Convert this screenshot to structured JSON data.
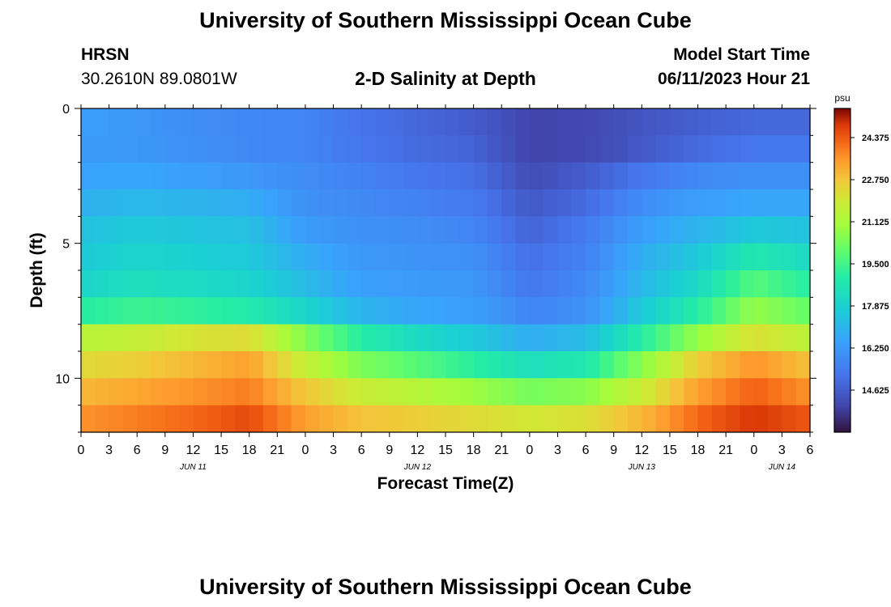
{
  "header": {
    "title": "University of Southern Mississippi Ocean Cube",
    "station": "HRSN",
    "coords": "30.2610N  89.0801W",
    "chart_title": "2-D Salinity at Depth",
    "start_label": "Model Start Time",
    "start_value": "06/11/2023 Hour 21"
  },
  "footer": {
    "title": "University of Southern Mississippi Ocean Cube"
  },
  "chart_data": {
    "type": "heatmap",
    "title": "2-D Salinity at Depth",
    "xlabel": "Forecast Time(Z)",
    "ylabel": "Depth (ft)",
    "ylim": [
      0,
      12
    ],
    "yticks": [
      0,
      5,
      10
    ],
    "xlim": [
      0,
      78
    ],
    "xtick_labels": [
      "0",
      "3",
      "6",
      "9",
      "12",
      "15",
      "18",
      "21",
      "0",
      "3",
      "6",
      "9",
      "12",
      "15",
      "18",
      "21",
      "0",
      "3",
      "6",
      "9",
      "12",
      "15",
      "18",
      "21",
      "0",
      "3",
      "6"
    ],
    "day_labels": [
      {
        "label": "JUN 11",
        "hour": 12
      },
      {
        "label": "JUN 12",
        "hour": 36
      },
      {
        "label": "JUN 13",
        "hour": 60
      },
      {
        "label": "JUN 14",
        "hour": 75
      }
    ],
    "colorbar": {
      "unit": "psu",
      "min": 13.0,
      "max": 25.5,
      "ticks": [
        "24.375",
        "22.750",
        "21.125",
        "19.500",
        "17.875",
        "16.250",
        "14.625"
      ]
    },
    "depth_layers_ft": [
      0.5,
      1.5,
      2.5,
      3.5,
      4.5,
      5.5,
      6.5,
      7.5,
      8.5,
      9.5,
      10.5,
      11.5
    ],
    "time_hours": [
      0,
      6,
      12,
      18,
      24,
      30,
      36,
      42,
      48,
      54,
      60,
      66,
      72,
      78
    ],
    "salinity_psu": [
      [
        16.4,
        16.2,
        15.9,
        15.8,
        15.7,
        15.2,
        14.9,
        14.6,
        14.0,
        14.1,
        14.4,
        14.7,
        14.9,
        14.9
      ],
      [
        16.3,
        16.2,
        16.0,
        15.8,
        15.7,
        15.3,
        15.0,
        14.8,
        14.0,
        14.1,
        14.5,
        15.0,
        15.3,
        15.3
      ],
      [
        16.5,
        16.6,
        16.4,
        16.2,
        15.9,
        15.6,
        15.3,
        15.1,
        14.2,
        14.6,
        15.3,
        15.8,
        16.0,
        16.0
      ],
      [
        16.9,
        17.1,
        17.0,
        16.8,
        16.0,
        15.8,
        15.6,
        15.4,
        14.5,
        15.0,
        15.9,
        16.4,
        16.6,
        16.6
      ],
      [
        17.4,
        17.6,
        17.5,
        17.3,
        16.3,
        16.0,
        15.9,
        15.7,
        14.8,
        15.4,
        16.4,
        17.0,
        17.6,
        17.4
      ],
      [
        17.6,
        18.0,
        17.8,
        17.6,
        16.8,
        16.2,
        16.1,
        16.0,
        15.1,
        15.6,
        16.8,
        17.6,
        18.8,
        18.2
      ],
      [
        18.0,
        18.4,
        18.2,
        18.0,
        17.2,
        16.4,
        16.3,
        16.2,
        15.3,
        15.8,
        17.1,
        18.2,
        19.8,
        19.0
      ],
      [
        19.0,
        19.4,
        19.2,
        18.9,
        18.0,
        17.0,
        16.6,
        16.4,
        15.7,
        16.0,
        17.6,
        19.0,
        20.8,
        20.0
      ],
      [
        21.4,
        21.7,
        22.1,
        22.3,
        20.5,
        19.0,
        18.2,
        17.6,
        16.8,
        17.2,
        19.0,
        20.8,
        22.2,
        21.5
      ],
      [
        22.3,
        22.6,
        23.0,
        23.4,
        21.7,
        20.4,
        19.8,
        19.1,
        18.4,
        18.8,
        20.6,
        22.6,
        23.6,
        22.8
      ],
      [
        23.0,
        23.3,
        23.6,
        23.9,
        22.7,
        21.8,
        21.4,
        20.9,
        20.3,
        20.6,
        21.8,
        23.4,
        24.3,
        23.6
      ],
      [
        23.6,
        23.9,
        24.2,
        24.6,
        23.4,
        22.8,
        22.6,
        22.3,
        22.0,
        22.2,
        23.0,
        24.2,
        24.9,
        24.4
      ]
    ]
  }
}
